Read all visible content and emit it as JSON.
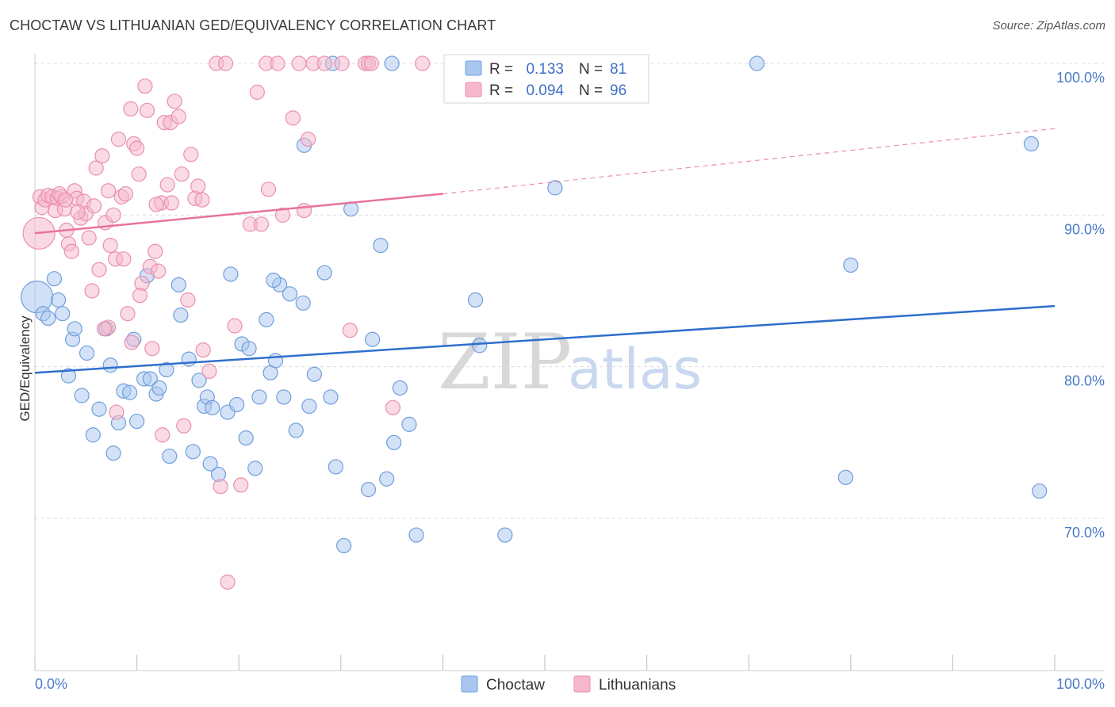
{
  "header": {
    "title": "CHOCTAW VS LITHUANIAN GED/EQUIVALENCY CORRELATION CHART",
    "source": "Source: ZipAtlas.com"
  },
  "watermark": {
    "part1": "ZIP",
    "part2": "atlas"
  },
  "chart_data": {
    "type": "scatter",
    "title": "CHOCTAW VS LITHUANIAN GED/EQUIVALENCY CORRELATION CHART",
    "xlabel": "",
    "ylabel": "GED/Equivalency",
    "xlim": [
      0,
      100
    ],
    "ylim": [
      60.5,
      102
    ],
    "x_tick_labels": {
      "left": "0.0%",
      "right": "100.0%"
    },
    "y_ticks": [
      {
        "value": 100,
        "label": "100.0%"
      },
      {
        "value": 90,
        "label": "90.0%"
      },
      {
        "value": 80,
        "label": "80.0%"
      },
      {
        "value": 70,
        "label": "70.0%"
      }
    ],
    "grid": true,
    "legend_position": "top-center",
    "colors": {
      "choctaw_fill": "#a9c6ef",
      "choctaw_stroke": "#6f9fdc",
      "choctaw_line": "#2f6fcc",
      "lith_fill": "#f6b8cc",
      "lith_stroke": "#ea8fae",
      "lith_line": "#e8739a"
    },
    "stats_legend": [
      {
        "r_label": "R =",
        "r_value": "0.133",
        "n_label": "N =",
        "n_value": "81"
      },
      {
        "r_label": "R =",
        "r_value": "0.094",
        "n_label": "N =",
        "n_value": "96"
      }
    ],
    "series": [
      {
        "name": "Choctaw",
        "trend": {
          "x": [
            0,
            100
          ],
          "y": [
            79.6,
            84.0
          ],
          "dashed_from": null
        },
        "big_point": {
          "x": 0.2,
          "y": 84.6
        },
        "points": [
          [
            0.8,
            83.5
          ],
          [
            1.3,
            83.2
          ],
          [
            1.9,
            85.8
          ],
          [
            2.3,
            84.4
          ],
          [
            2.7,
            83.5
          ],
          [
            3.7,
            81.8
          ],
          [
            3.9,
            82.5
          ],
          [
            4.6,
            78.1
          ],
          [
            5.1,
            80.9
          ],
          [
            3.3,
            79.4
          ],
          [
            5.7,
            75.5
          ],
          [
            6.3,
            77.2
          ],
          [
            7.4,
            80.1
          ],
          [
            7.7,
            74.3
          ],
          [
            8.2,
            76.3
          ],
          [
            8.7,
            78.4
          ],
          [
            9.3,
            78.3
          ],
          [
            9.7,
            81.8
          ],
          [
            10.0,
            76.4
          ],
          [
            10.7,
            79.2
          ],
          [
            11.3,
            79.2
          ],
          [
            11.9,
            78.2
          ],
          [
            12.2,
            78.6
          ],
          [
            12.9,
            79.8
          ],
          [
            13.2,
            74.1
          ],
          [
            14.1,
            85.4
          ],
          [
            14.3,
            83.4
          ],
          [
            15.1,
            80.5
          ],
          [
            15.5,
            74.4
          ],
          [
            16.1,
            79.1
          ],
          [
            16.6,
            77.4
          ],
          [
            16.9,
            78.0
          ],
          [
            17.4,
            77.3
          ],
          [
            18.0,
            72.9
          ],
          [
            18.9,
            77.0
          ],
          [
            19.2,
            86.1
          ],
          [
            19.8,
            77.5
          ],
          [
            20.3,
            81.5
          ],
          [
            20.7,
            75.3
          ],
          [
            21.0,
            81.2
          ],
          [
            21.6,
            73.3
          ],
          [
            22.0,
            78.0
          ],
          [
            22.7,
            83.1
          ],
          [
            23.1,
            79.6
          ],
          [
            23.6,
            80.4
          ],
          [
            24.0,
            85.4
          ],
          [
            24.4,
            78.0
          ],
          [
            25.0,
            84.8
          ],
          [
            25.6,
            75.8
          ],
          [
            26.3,
            84.2
          ],
          [
            26.9,
            77.4
          ],
          [
            27.4,
            79.5
          ],
          [
            28.4,
            86.2
          ],
          [
            29.0,
            78.0
          ],
          [
            29.5,
            73.4
          ],
          [
            30.3,
            68.2
          ],
          [
            31.0,
            90.4
          ],
          [
            32.7,
            71.9
          ],
          [
            33.1,
            81.8
          ],
          [
            33.9,
            88.0
          ],
          [
            34.5,
            72.6
          ],
          [
            35.2,
            75.0
          ],
          [
            35.8,
            78.6
          ],
          [
            36.7,
            76.2
          ],
          [
            37.4,
            68.9
          ],
          [
            43.2,
            84.4
          ],
          [
            43.6,
            81.4
          ],
          [
            46.1,
            68.9
          ],
          [
            51.0,
            91.8
          ],
          [
            11.0,
            86.0
          ],
          [
            26.4,
            94.6
          ],
          [
            29.2,
            100.0
          ],
          [
            35.0,
            100.0
          ],
          [
            70.8,
            100.0
          ],
          [
            79.5,
            72.7
          ],
          [
            80.0,
            86.7
          ],
          [
            97.7,
            94.7
          ],
          [
            98.5,
            71.8
          ],
          [
            7.0,
            82.5
          ],
          [
            17.2,
            73.6
          ],
          [
            23.4,
            85.7
          ]
        ]
      },
      {
        "name": "Lithuanians",
        "trend": {
          "x": [
            0,
            40,
            100
          ],
          "y": [
            88.8,
            91.4,
            95.7
          ],
          "dashed_from": 40
        },
        "big_point": {
          "x": 0.4,
          "y": 88.8
        },
        "points": [
          [
            0.5,
            91.2
          ],
          [
            0.7,
            90.5
          ],
          [
            1.0,
            91.0
          ],
          [
            1.3,
            91.3
          ],
          [
            1.7,
            91.2
          ],
          [
            2.0,
            90.3
          ],
          [
            2.2,
            91.1
          ],
          [
            2.6,
            91.2
          ],
          [
            2.9,
            90.4
          ],
          [
            3.1,
            89.0
          ],
          [
            3.3,
            88.1
          ],
          [
            3.6,
            87.6
          ],
          [
            3.9,
            91.6
          ],
          [
            4.1,
            91.1
          ],
          [
            4.5,
            89.8
          ],
          [
            4.8,
            90.9
          ],
          [
            5.0,
            90.1
          ],
          [
            5.3,
            88.5
          ],
          [
            5.6,
            85.0
          ],
          [
            5.8,
            90.6
          ],
          [
            6.0,
            93.1
          ],
          [
            6.3,
            86.4
          ],
          [
            6.6,
            93.9
          ],
          [
            6.9,
            89.5
          ],
          [
            7.2,
            91.6
          ],
          [
            7.4,
            88.0
          ],
          [
            7.7,
            90.0
          ],
          [
            7.9,
            87.1
          ],
          [
            8.2,
            95.0
          ],
          [
            8.5,
            91.2
          ],
          [
            8.7,
            87.1
          ],
          [
            8.9,
            91.4
          ],
          [
            9.1,
            83.5
          ],
          [
            9.4,
            97.0
          ],
          [
            9.7,
            94.7
          ],
          [
            10.0,
            94.4
          ],
          [
            10.2,
            92.7
          ],
          [
            10.5,
            85.5
          ],
          [
            10.8,
            98.5
          ],
          [
            11.0,
            96.9
          ],
          [
            11.3,
            86.6
          ],
          [
            11.5,
            81.2
          ],
          [
            11.8,
            87.6
          ],
          [
            12.1,
            86.3
          ],
          [
            12.4,
            90.8
          ],
          [
            12.7,
            96.1
          ],
          [
            13.0,
            92.0
          ],
          [
            13.3,
            96.1
          ],
          [
            13.7,
            97.5
          ],
          [
            14.1,
            96.5
          ],
          [
            14.4,
            92.7
          ],
          [
            15.0,
            84.4
          ],
          [
            15.3,
            94.0
          ],
          [
            15.7,
            91.1
          ],
          [
            16.0,
            91.9
          ],
          [
            16.5,
            81.1
          ],
          [
            17.1,
            79.7
          ],
          [
            17.8,
            100.0
          ],
          [
            18.2,
            72.1
          ],
          [
            18.9,
            65.8
          ],
          [
            19.6,
            82.7
          ],
          [
            20.2,
            72.2
          ],
          [
            21.1,
            89.4
          ],
          [
            21.8,
            98.1
          ],
          [
            22.2,
            89.4
          ],
          [
            22.9,
            91.7
          ],
          [
            22.7,
            100.0
          ],
          [
            23.8,
            100.0
          ],
          [
            24.3,
            90.0
          ],
          [
            25.3,
            96.4
          ],
          [
            26.4,
            90.3
          ],
          [
            26.8,
            95.0
          ],
          [
            27.3,
            100.0
          ],
          [
            30.1,
            100.0
          ],
          [
            30.9,
            82.4
          ],
          [
            32.4,
            100.0
          ],
          [
            32.7,
            100.0
          ],
          [
            35.1,
            77.3
          ],
          [
            38.0,
            100.0
          ],
          [
            7.2,
            82.6
          ],
          [
            9.5,
            81.6
          ],
          [
            10.3,
            84.7
          ],
          [
            12.5,
            75.5
          ],
          [
            14.6,
            76.1
          ],
          [
            16.4,
            91.0
          ],
          [
            18.7,
            100.0
          ],
          [
            25.9,
            100.0
          ],
          [
            28.4,
            100.0
          ],
          [
            33.0,
            100.0
          ],
          [
            4.2,
            90.2
          ],
          [
            6.8,
            82.5
          ],
          [
            8.0,
            77.0
          ],
          [
            11.9,
            90.7
          ],
          [
            13.4,
            90.8
          ],
          [
            2.4,
            91.4
          ],
          [
            3.0,
            91.0
          ]
        ]
      }
    ]
  },
  "bottom_legend": {
    "items": [
      "Choctaw",
      "Lithuanians"
    ]
  }
}
